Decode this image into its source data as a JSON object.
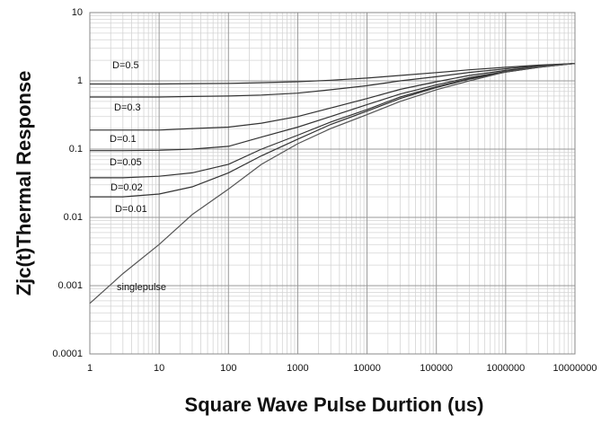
{
  "chart_data": {
    "type": "line",
    "xlabel": "Square Wave Pulse Durtion (us)",
    "ylabel": "Zjc(t)Thermal Response",
    "xscale": "log",
    "yscale": "log",
    "grid": true,
    "minor_grid": true,
    "xlim": [
      1,
      10000000
    ],
    "ylim": [
      0.0001,
      10
    ],
    "xticks": [
      1,
      10,
      100,
      1000,
      10000,
      100000,
      1000000,
      10000000
    ],
    "yticks": [
      0.0001,
      0.001,
      0.01,
      0.1,
      1,
      10
    ],
    "x": [
      1,
      3,
      10,
      30,
      100,
      300,
      1000,
      3000,
      10000,
      30000,
      100000,
      300000,
      1000000,
      3000000,
      10000000
    ],
    "series": [
      {
        "name": "D=0.5",
        "color": "#333333",
        "values": [
          0.9,
          0.9,
          0.9,
          0.91,
          0.92,
          0.94,
          0.97,
          1.02,
          1.1,
          1.2,
          1.32,
          1.45,
          1.58,
          1.7,
          1.8
        ]
      },
      {
        "name": "D=0.3",
        "color": "#333333",
        "values": [
          0.58,
          0.58,
          0.58,
          0.59,
          0.6,
          0.62,
          0.66,
          0.74,
          0.85,
          1.0,
          1.15,
          1.33,
          1.5,
          1.67,
          1.8
        ]
      },
      {
        "name": "D=0.1",
        "color": "#333333",
        "values": [
          0.19,
          0.19,
          0.19,
          0.2,
          0.21,
          0.24,
          0.3,
          0.4,
          0.55,
          0.75,
          0.97,
          1.2,
          1.42,
          1.62,
          1.8
        ]
      },
      {
        "name": "D=0.05",
        "color": "#333333",
        "values": [
          0.095,
          0.095,
          0.096,
          0.1,
          0.11,
          0.15,
          0.21,
          0.3,
          0.45,
          0.64,
          0.87,
          1.12,
          1.37,
          1.6,
          1.8
        ]
      },
      {
        "name": "D=0.02",
        "color": "#333333",
        "values": [
          0.038,
          0.038,
          0.04,
          0.045,
          0.06,
          0.1,
          0.16,
          0.25,
          0.38,
          0.58,
          0.82,
          1.08,
          1.35,
          1.58,
          1.8
        ]
      },
      {
        "name": "D=0.01",
        "color": "#333333",
        "values": [
          0.02,
          0.02,
          0.022,
          0.028,
          0.045,
          0.08,
          0.14,
          0.23,
          0.36,
          0.55,
          0.8,
          1.06,
          1.34,
          1.58,
          1.8
        ]
      },
      {
        "name": "singlepulse",
        "color": "#555555",
        "values": [
          0.00055,
          0.0015,
          0.004,
          0.011,
          0.026,
          0.06,
          0.12,
          0.2,
          0.32,
          0.5,
          0.74,
          1.0,
          1.35,
          1.6,
          1.8
        ]
      }
    ]
  }
}
